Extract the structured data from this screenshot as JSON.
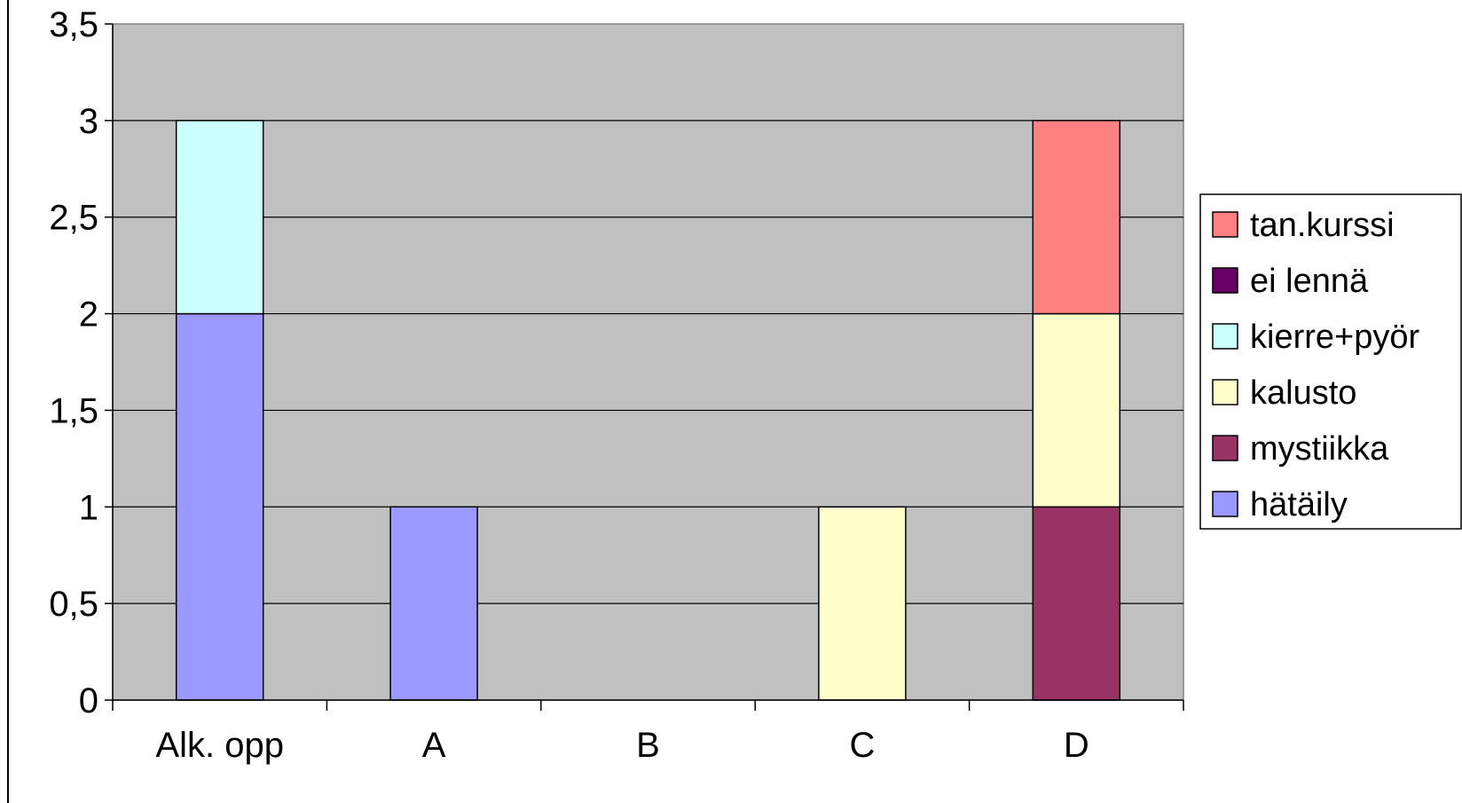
{
  "chart_data": {
    "type": "bar",
    "stacked": true,
    "categories": [
      "Alk. opp",
      "A",
      "B",
      "C",
      "D"
    ],
    "ylim": [
      0,
      3.5
    ],
    "y_ticks": [
      "0",
      "0,5",
      "1",
      "1,5",
      "2",
      "2,5",
      "3",
      "3,5"
    ],
    "y_tick_values": [
      0,
      0.5,
      1,
      1.5,
      2,
      2.5,
      3,
      3.5
    ],
    "grid": true,
    "plot_background": "#c0c0c0",
    "legend_position": "right",
    "series": [
      {
        "name": "hätäily",
        "color": "#9999ff",
        "values": [
          2,
          1,
          0,
          0,
          0
        ]
      },
      {
        "name": "mystiikka",
        "color": "#993366",
        "values": [
          0,
          0,
          0,
          0,
          1
        ]
      },
      {
        "name": "kalusto",
        "color": "#ffffcc",
        "values": [
          0,
          0,
          0,
          1,
          1
        ]
      },
      {
        "name": "kierre+pyör",
        "color": "#ccffff",
        "values": [
          1,
          0,
          0,
          0,
          0
        ]
      },
      {
        "name": "ei lennä",
        "color": "#660066",
        "values": [
          0,
          0,
          0,
          0,
          0
        ]
      },
      {
        "name": "tan.kurssi",
        "color": "#ff8080",
        "values": [
          0,
          0,
          0,
          0,
          1
        ]
      }
    ],
    "legend_order": [
      "tan.kurssi",
      "ei lennä",
      "kierre+pyör",
      "kalusto",
      "mystiikka",
      "hätäily"
    ]
  }
}
